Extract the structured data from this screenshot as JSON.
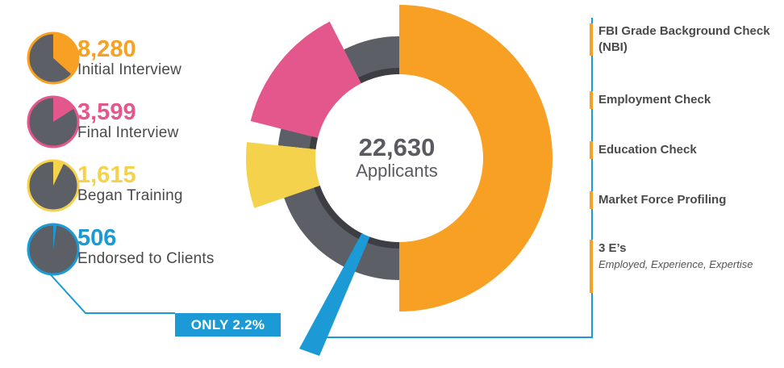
{
  "stats": [
    {
      "value": "8,280",
      "label": "Initial Interview",
      "color": "#f7a023",
      "fraction": 0.366
    },
    {
      "value": "3,599",
      "label": "Final Interview",
      "color": "#e4578d",
      "fraction": 0.159
    },
    {
      "value": "1,615",
      "label": "Began Training",
      "color": "#f5d24b",
      "fraction": 0.071
    },
    {
      "value": "506",
      "label": "Endorsed to Clients",
      "color": "#1b9ad6",
      "fraction": 0.022
    }
  ],
  "center": {
    "value": "22,630",
    "label": "Applicants"
  },
  "badge": "ONLY 2.2%",
  "checks": [
    {
      "title": "FBI Grade Background Check (NBI)"
    },
    {
      "title": "Employment Check"
    },
    {
      "title": "Education Check"
    },
    {
      "title": "Market Force Profiling"
    },
    {
      "title": "3 E’s",
      "subtitle": "Employed, Experience, Expertise"
    }
  ],
  "colors": {
    "orange": "#f7a023",
    "pink": "#e4578d",
    "yellow": "#f5d24b",
    "blue": "#1b9ad6",
    "gray": "#5d5f66",
    "dark": "#3d3e44"
  }
}
